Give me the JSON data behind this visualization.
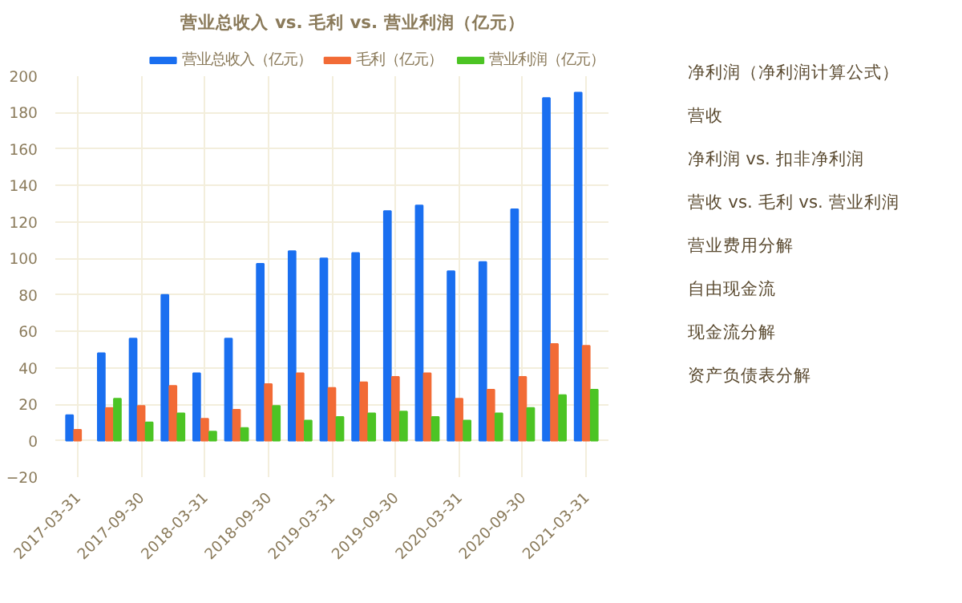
{
  "chart_data": [
    {
      "type": "bar",
      "title": "营业总收入 vs. 毛利 vs. 营业利润（亿元）",
      "categories": [
        "2017-03-31",
        null,
        "2017-09-30",
        null,
        "2018-03-31",
        null,
        "2018-09-30",
        null,
        "2019-03-31",
        null,
        "2019-09-30",
        null,
        "2020-03-31",
        null,
        "2020-09-30",
        null,
        "2021-03-31"
      ],
      "series": [
        {
          "name": "营业总收入（亿元）",
          "color": "#1a6ff0",
          "values": [
            14,
            48,
            56,
            80,
            37,
            56,
            97,
            104,
            100,
            103,
            126,
            129,
            93,
            98,
            127,
            188,
            191
          ]
        },
        {
          "name": "毛利（亿元）",
          "color": "#f26b36",
          "values": [
            6,
            18,
            19,
            30,
            12,
            17,
            31,
            37,
            29,
            32,
            35,
            37,
            23,
            28,
            35,
            53,
            52
          ]
        },
        {
          "name": "营业利润（亿元）",
          "color": "#4cc424",
          "values": [
            null,
            23,
            10,
            15,
            5,
            7,
            19,
            11,
            13,
            15,
            16,
            13,
            11,
            15,
            18,
            25,
            28
          ]
        }
      ],
      "ylim": [
        -20,
        200
      ],
      "yticks": [
        -20,
        0,
        20,
        40,
        60,
        80,
        100,
        120,
        140,
        160,
        180,
        200
      ],
      "grid": true,
      "legend": "top"
    },
    {
      "type": "other",
      "annotations": [
        "净利润（净利润计算公式）",
        "营收",
        "净利润 vs. 扣非净利润",
        "营收 vs. 毛利 vs. 营业利润",
        "营业费用分解",
        "自由现金流",
        "现金流分解",
        "资产负债表分解"
      ]
    }
  ]
}
